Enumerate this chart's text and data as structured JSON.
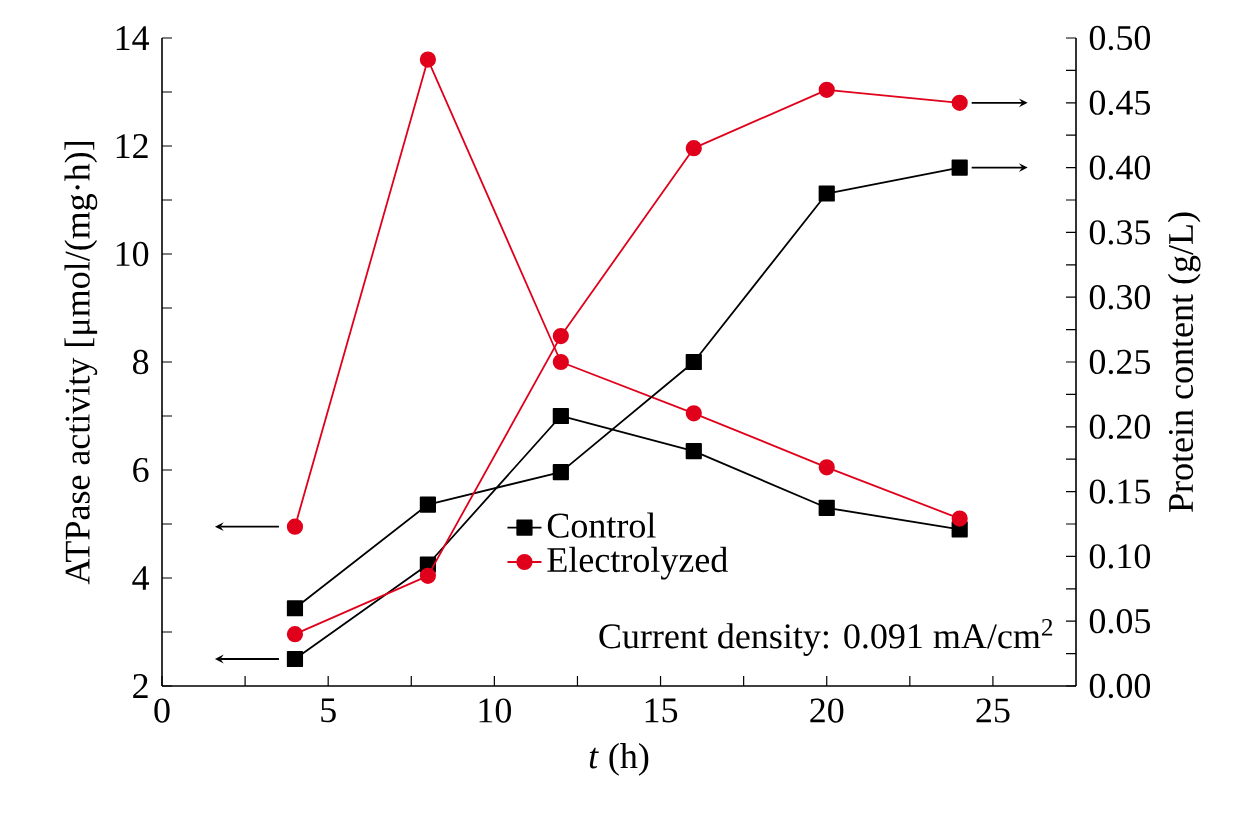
{
  "chart_data": {
    "type": "line",
    "xlabel": "*t* (h)",
    "ylabel": "ATPase activity [μmol/(mg·h)]",
    "y2label": "Protein content (g/L)",
    "annotations": [
      "Current density: 0.091 mA/cm$^{2}$"
    ],
    "xlim": [
      0,
      27.5
    ],
    "xticks": [
      0,
      {
        "value": 2.5,
        "label": null
      },
      5,
      {
        "value": 7.5,
        "label": null
      },
      10,
      {
        "value": 12.5,
        "label": null
      },
      15,
      {
        "value": 17.5,
        "label": null
      },
      20,
      {
        "value": 22.5,
        "label": null
      },
      25
    ],
    "ylim": [
      2,
      14
    ],
    "yticks": [
      2,
      {
        "value": 3,
        "label": null
      },
      4,
      {
        "value": 5,
        "label": null
      },
      6,
      {
        "value": 7,
        "label": null
      },
      8,
      {
        "value": 9,
        "label": null
      },
      10,
      {
        "value": 11,
        "label": null
      },
      12,
      {
        "value": 13,
        "label": null
      },
      14
    ],
    "y2lim": [
      0,
      0.5
    ],
    "y2ticks": [
      {
        "value": 0,
        "label": "0.00"
      },
      {
        "value": 0.025,
        "label": null
      },
      {
        "value": 0.05,
        "label": "0.05"
      },
      {
        "value": 0.075,
        "label": null
      },
      {
        "value": 0.1,
        "label": "0.10"
      },
      {
        "value": 0.125,
        "label": null
      },
      {
        "value": 0.15,
        "label": "0.15"
      },
      {
        "value": 0.175,
        "label": null
      },
      {
        "value": 0.2,
        "label": "0.20"
      },
      {
        "value": 0.225,
        "label": null
      },
      {
        "value": 0.25,
        "label": "0.25"
      },
      {
        "value": 0.275,
        "label": null
      },
      {
        "value": 0.3,
        "label": "0.30"
      },
      {
        "value": 0.325,
        "label": null
      },
      {
        "value": 0.35,
        "label": "0.35"
      },
      {
        "value": 0.375,
        "label": null
      },
      {
        "value": 0.4,
        "label": "0.40"
      },
      {
        "value": 0.425,
        "label": null
      },
      {
        "value": 0.45,
        "label": "0.45"
      },
      {
        "value": 0.475,
        "label": null
      },
      {
        "value": 0.5,
        "label": "0.50"
      }
    ],
    "x": [
      4,
      8,
      12,
      16,
      20,
      24
    ],
    "legend": "bottom",
    "grid": false,
    "line_style": "solid",
    "series": [
      {
        "name": "Control",
        "color": "#000000",
        "marker": "square",
        "values": [
          2.5,
          4.25,
          7.0,
          6.35,
          5.3,
          4.9
        ]
      },
      {
        "name": "Electrolyzed",
        "color": "#e0001b",
        "marker": "circle",
        "values": [
          4.95,
          13.6,
          8.0,
          7.05,
          6.05,
          5.1
        ]
      },
      {
        "color": "#000000",
        "marker": "square",
        "axis": "y2",
        "values": [
          0.06,
          0.14,
          0.165,
          0.25,
          0.38,
          0.4
        ]
      },
      {
        "color": "#e0001b",
        "marker": "circle",
        "axis": "y2",
        "values": [
          0.04,
          0.085,
          0.27,
          0.415,
          0.46,
          0.45
        ]
      }
    ]
  }
}
